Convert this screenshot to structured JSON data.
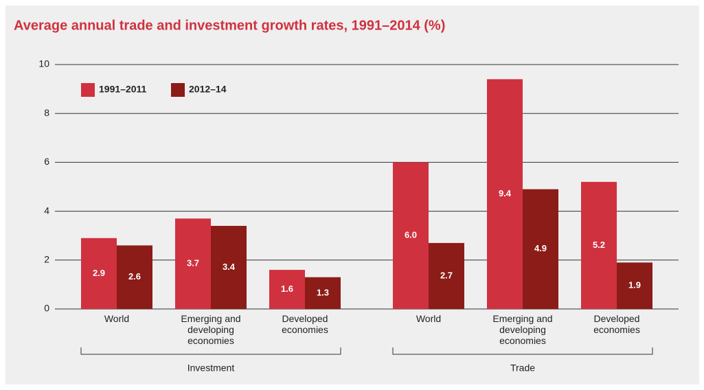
{
  "chart_data": {
    "type": "bar",
    "title": "Average annual trade and investment growth rates, 1991–2014 (%)",
    "categories": [
      "World",
      "Emerging and developing economies",
      "Developed economies",
      "World",
      "Emerging and developing economies",
      "Developed economies"
    ],
    "groups": [
      "Investment",
      "Trade"
    ],
    "series": [
      {
        "name": "1991–2011",
        "color": "#d0313f",
        "values": [
          2.9,
          3.7,
          1.6,
          6.0,
          9.4,
          5.2
        ],
        "value_labels": [
          "2.9",
          "3.7",
          "1.6",
          "6.0",
          "9.4",
          "5.2"
        ]
      },
      {
        "name": "2012–14",
        "color": "#8b1c17",
        "values": [
          2.6,
          3.4,
          1.3,
          2.7,
          4.9,
          1.9
        ],
        "value_labels": [
          "2.6",
          "3.4",
          "1.3",
          "2.7",
          "4.9",
          "1.9"
        ]
      }
    ],
    "ylim": [
      0,
      10
    ],
    "yticks": [
      0,
      2,
      4,
      6,
      8,
      10
    ],
    "grid": true,
    "legend": "top-left"
  }
}
